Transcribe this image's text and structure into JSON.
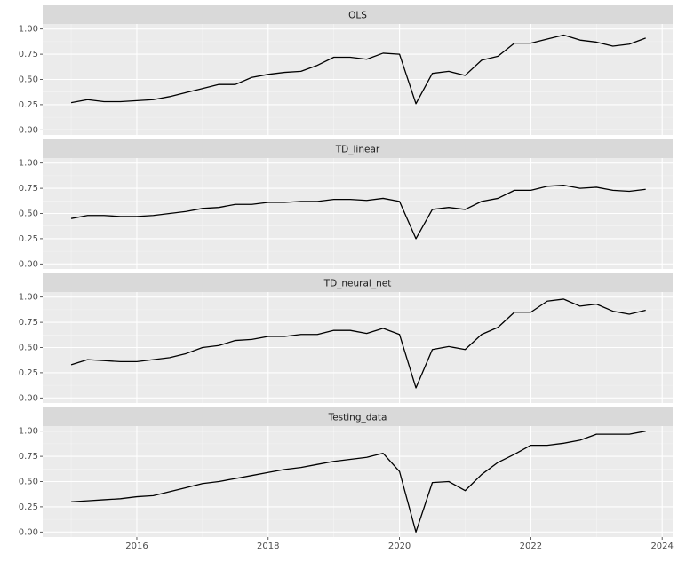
{
  "chart_data": [
    {
      "type": "line",
      "title": "OLS",
      "x": [
        2015,
        2015.25,
        2015.5,
        2015.75,
        2016,
        2016.25,
        2016.5,
        2016.75,
        2017,
        2017.25,
        2017.5,
        2017.75,
        2018,
        2018.25,
        2018.5,
        2018.75,
        2019,
        2019.25,
        2019.5,
        2019.75,
        2020,
        2020.25,
        2020.5,
        2020.75,
        2021,
        2021.25,
        2021.5,
        2021.75,
        2022,
        2022.25,
        2022.5,
        2022.75,
        2023,
        2023.25,
        2023.5,
        2023.75
      ],
      "values": [
        0.27,
        0.3,
        0.28,
        0.28,
        0.29,
        0.3,
        0.33,
        0.37,
        0.41,
        0.45,
        0.45,
        0.52,
        0.55,
        0.57,
        0.58,
        0.64,
        0.72,
        0.72,
        0.7,
        0.76,
        0.75,
        0.26,
        0.56,
        0.58,
        0.54,
        0.69,
        0.73,
        0.86,
        0.86,
        0.9,
        0.94,
        0.89,
        0.87,
        0.83,
        0.85,
        0.91
      ],
      "color": "#000000",
      "xlim": [
        2014.566,
        2024.16
      ],
      "xticks": [
        2016,
        2018,
        2020,
        2022,
        2024
      ],
      "ylim": [
        -0.05,
        1.05
      ],
      "yticks": [
        {
          "value": 0,
          "label": "0.00"
        },
        {
          "value": 0.25,
          "label": "0.25"
        },
        {
          "value": 0.5,
          "label": "0.50"
        },
        {
          "value": 0.75,
          "label": "0.75"
        },
        {
          "value": 1,
          "label": "1.00"
        }
      ]
    },
    {
      "type": "line",
      "title": "TD_linear",
      "x": [
        2015,
        2015.25,
        2015.5,
        2015.75,
        2016,
        2016.25,
        2016.5,
        2016.75,
        2017,
        2017.25,
        2017.5,
        2017.75,
        2018,
        2018.25,
        2018.5,
        2018.75,
        2019,
        2019.25,
        2019.5,
        2019.75,
        2020,
        2020.25,
        2020.5,
        2020.75,
        2021,
        2021.25,
        2021.5,
        2021.75,
        2022,
        2022.25,
        2022.5,
        2022.75,
        2023,
        2023.25,
        2023.5,
        2023.75
      ],
      "values": [
        0.45,
        0.48,
        0.48,
        0.47,
        0.47,
        0.48,
        0.5,
        0.52,
        0.55,
        0.56,
        0.59,
        0.59,
        0.61,
        0.61,
        0.62,
        0.62,
        0.64,
        0.64,
        0.63,
        0.65,
        0.62,
        0.25,
        0.54,
        0.56,
        0.54,
        0.62,
        0.65,
        0.73,
        0.73,
        0.77,
        0.78,
        0.75,
        0.76,
        0.73,
        0.72,
        0.74
      ],
      "color": "#000000",
      "xlim": [
        2014.566,
        2024.16
      ],
      "xticks": [
        2016,
        2018,
        2020,
        2022,
        2024
      ],
      "ylim": [
        -0.05,
        1.05
      ],
      "yticks": [
        {
          "value": 0,
          "label": "0.00"
        },
        {
          "value": 0.25,
          "label": "0.25"
        },
        {
          "value": 0.5,
          "label": "0.50"
        },
        {
          "value": 0.75,
          "label": "0.75"
        },
        {
          "value": 1,
          "label": "1.00"
        }
      ]
    },
    {
      "type": "line",
      "title": "TD_neural_net",
      "x": [
        2015,
        2015.25,
        2015.5,
        2015.75,
        2016,
        2016.25,
        2016.5,
        2016.75,
        2017,
        2017.25,
        2017.5,
        2017.75,
        2018,
        2018.25,
        2018.5,
        2018.75,
        2019,
        2019.25,
        2019.5,
        2019.75,
        2020,
        2020.25,
        2020.5,
        2020.75,
        2021,
        2021.25,
        2021.5,
        2021.75,
        2022,
        2022.25,
        2022.5,
        2022.75,
        2023,
        2023.25,
        2023.5,
        2023.75
      ],
      "values": [
        0.33,
        0.38,
        0.37,
        0.36,
        0.36,
        0.38,
        0.4,
        0.44,
        0.5,
        0.52,
        0.57,
        0.58,
        0.61,
        0.61,
        0.63,
        0.63,
        0.67,
        0.67,
        0.64,
        0.69,
        0.63,
        0.1,
        0.48,
        0.51,
        0.48,
        0.63,
        0.7,
        0.85,
        0.85,
        0.96,
        0.98,
        0.91,
        0.93,
        0.86,
        0.83,
        0.87
      ],
      "color": "#000000",
      "xlim": [
        2014.566,
        2024.16
      ],
      "xticks": [
        2016,
        2018,
        2020,
        2022,
        2024
      ],
      "ylim": [
        -0.05,
        1.05
      ],
      "yticks": [
        {
          "value": 0,
          "label": "0.00"
        },
        {
          "value": 0.25,
          "label": "0.25"
        },
        {
          "value": 0.5,
          "label": "0.50"
        },
        {
          "value": 0.75,
          "label": "0.75"
        },
        {
          "value": 1,
          "label": "1.00"
        }
      ]
    },
    {
      "type": "line",
      "title": "Testing_data",
      "x": [
        2015,
        2015.25,
        2015.5,
        2015.75,
        2016,
        2016.25,
        2016.5,
        2016.75,
        2017,
        2017.25,
        2017.5,
        2017.75,
        2018,
        2018.25,
        2018.5,
        2018.75,
        2019,
        2019.25,
        2019.5,
        2019.75,
        2020,
        2020.25,
        2020.5,
        2020.75,
        2021,
        2021.25,
        2021.5,
        2021.75,
        2022,
        2022.25,
        2022.5,
        2022.75,
        2023,
        2023.25,
        2023.5,
        2023.75
      ],
      "values": [
        0.3,
        0.31,
        0.32,
        0.33,
        0.35,
        0.36,
        0.4,
        0.44,
        0.48,
        0.5,
        0.53,
        0.56,
        0.59,
        0.62,
        0.64,
        0.67,
        0.7,
        0.72,
        0.74,
        0.78,
        0.6,
        0.0,
        0.49,
        0.5,
        0.41,
        0.57,
        0.69,
        0.77,
        0.86,
        0.86,
        0.88,
        0.91,
        0.97,
        0.97,
        0.97,
        1.0
      ],
      "color": "#000000",
      "xlim": [
        2014.566,
        2024.16
      ],
      "xticks": [
        2016,
        2018,
        2020,
        2022,
        2024
      ],
      "ylim": [
        -0.05,
        1.05
      ],
      "yticks": [
        {
          "value": 0,
          "label": "0.00"
        },
        {
          "value": 0.25,
          "label": "0.25"
        },
        {
          "value": 0.5,
          "label": "0.50"
        },
        {
          "value": 0.75,
          "label": "0.75"
        },
        {
          "value": 1,
          "label": "1.00"
        }
      ]
    }
  ]
}
